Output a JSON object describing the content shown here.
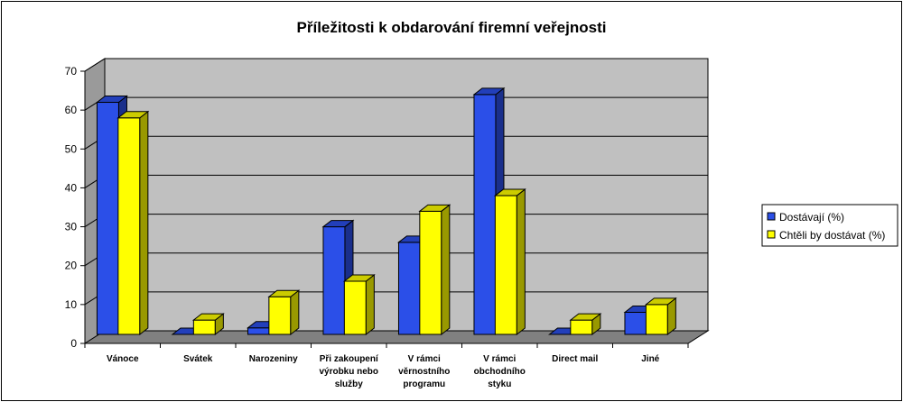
{
  "chart_data": {
    "type": "bar",
    "title": "Příležitosti k obdarování firemní veřejnosti",
    "categories": [
      [
        "Vánoce"
      ],
      [
        "Svátek"
      ],
      [
        "Narozeniny"
      ],
      [
        "Při zakoupení",
        "výrobku nebo",
        "služby"
      ],
      [
        "V rámci",
        "věrnostního",
        "programu"
      ],
      [
        "V rámci",
        "obchodního",
        "styku"
      ],
      [
        "Direct mail"
      ],
      [
        "Jiné"
      ]
    ],
    "series": [
      {
        "name": "Dostávají (%)",
        "values": [
          62,
          2,
          4,
          30,
          26,
          64,
          2,
          8
        ],
        "color": "#2b4fe8"
      },
      {
        "name": "Chtěli by dostávat (%)",
        "values": [
          58,
          6,
          12,
          16,
          34,
          38,
          6,
          10
        ],
        "color": "#ffff00"
      }
    ],
    "ylim": [
      0,
      70
    ],
    "yticks": [
      0,
      10,
      20,
      30,
      40,
      50,
      60,
      70
    ],
    "grid": true,
    "legend_position": "right"
  }
}
